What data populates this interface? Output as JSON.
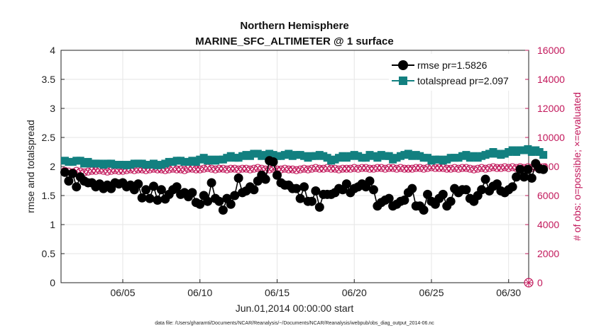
{
  "chart_data": {
    "type": "line",
    "title": "Northern Hemisphere",
    "subtitle": "MARINE_SFC_ALTIMETER @ 1 surface",
    "xlabel": "Jun.01,2014 00:00:00 start",
    "ylabel": "rmse and totalspread",
    "ylabel_right": "# of obs: o=possible; ×=evaluated",
    "footnote": "data file: /Users/gharamti/Documents/NCAR/Reanalysis/~/Documents/NCAR/Reanalysis/webpub/obs_diag_output_2014-06.nc",
    "xlim": [
      1.0,
      31.3
    ],
    "ylim": [
      0,
      4
    ],
    "ylim_right": [
      0,
      16000
    ],
    "x_ticks": [
      5,
      10,
      15,
      20,
      25,
      30
    ],
    "x_tick_labels": [
      "06/05",
      "06/10",
      "06/15",
      "06/20",
      "06/25",
      "06/30"
    ],
    "y_ticks": [
      0,
      0.5,
      1,
      1.5,
      2,
      2.5,
      3,
      3.5,
      4
    ],
    "y_tick_labels": [
      "0",
      "0.5",
      "1",
      "1.5",
      "2",
      "2.5",
      "3",
      "3.5",
      "4"
    ],
    "y_ticks_right": [
      0,
      2000,
      4000,
      6000,
      8000,
      10000,
      12000,
      14000,
      16000
    ],
    "y_tick_labels_right": [
      "0",
      "2000",
      "4000",
      "6000",
      "8000",
      "10000",
      "12000",
      "14000",
      "16000"
    ],
    "grid": true,
    "legend_position": "top-right",
    "series": [
      {
        "name": "rmse pr=1.5826",
        "color": "#000000",
        "marker": "circle",
        "axis": "left",
        "y": [
          1.9,
          1.75,
          1.88,
          1.65,
          1.82,
          1.75,
          1.72,
          1.72,
          1.65,
          1.7,
          1.62,
          1.68,
          1.62,
          1.72,
          1.7,
          1.72,
          1.65,
          1.68,
          1.6,
          1.7,
          1.46,
          1.6,
          1.45,
          1.66,
          1.42,
          1.6,
          1.44,
          1.52,
          1.6,
          1.65,
          1.52,
          1.55,
          1.48,
          1.55,
          1.38,
          1.35,
          1.5,
          1.4,
          1.72,
          1.45,
          1.4,
          1.25,
          1.45,
          1.35,
          1.5,
          1.8,
          1.55,
          1.58,
          1.65,
          1.6,
          1.75,
          1.85,
          1.78,
          2.1,
          2.08,
          1.85,
          1.72,
          1.68,
          1.68,
          1.62,
          1.62,
          1.45,
          1.65,
          1.4,
          1.4,
          1.58,
          1.3,
          1.52,
          1.52,
          1.52,
          1.55,
          1.62,
          1.6,
          1.7,
          1.55,
          1.62,
          1.65,
          1.7,
          1.65,
          1.75,
          1.6,
          1.32,
          1.38,
          1.42,
          1.45,
          1.32,
          1.35,
          1.4,
          1.42,
          1.55,
          1.62,
          1.32,
          1.32,
          1.25,
          1.52,
          1.4,
          1.35,
          1.45,
          1.52,
          1.32,
          1.4,
          1.62,
          1.55,
          1.6,
          1.6,
          1.45,
          1.4,
          1.5,
          1.6,
          1.78,
          1.58,
          1.66,
          1.7,
          1.58,
          1.55,
          1.6,
          1.65,
          1.82,
          1.95,
          1.82,
          1.95,
          1.8,
          2.05,
          1.96,
          1.95
        ]
      },
      {
        "name": "totalspread pr=2.097",
        "color": "#128080",
        "marker": "square",
        "axis": "left",
        "y": [
          2.1,
          2.08,
          2.08,
          2.1,
          2.1,
          2.05,
          2.08,
          2.05,
          2.05,
          2.05,
          2.03,
          2.05,
          2.05,
          2.03,
          2.03,
          2.03,
          2.02,
          2.03,
          2.05,
          2.05,
          2.05,
          2.03,
          2.03,
          2.05,
          2.02,
          2.03,
          2.05,
          2.08,
          2.08,
          2.1,
          2.1,
          2.08,
          2.08,
          2.1,
          2.08,
          2.12,
          2.15,
          2.1,
          2.12,
          2.1,
          2.12,
          2.12,
          2.15,
          2.18,
          2.15,
          2.15,
          2.18,
          2.2,
          2.18,
          2.22,
          2.22,
          2.18,
          2.2,
          2.22,
          2.2,
          2.18,
          2.18,
          2.2,
          2.22,
          2.18,
          2.2,
          2.2,
          2.18,
          2.15,
          2.18,
          2.18,
          2.2,
          2.18,
          2.15,
          2.1,
          2.12,
          2.15,
          2.18,
          2.15,
          2.18,
          2.2,
          2.18,
          2.15,
          2.15,
          2.2,
          2.18,
          2.15,
          2.2,
          2.18,
          2.18,
          2.12,
          2.15,
          2.18,
          2.2,
          2.22,
          2.18,
          2.2,
          2.18,
          2.15,
          2.15,
          2.1,
          2.12,
          2.12,
          2.1,
          2.12,
          2.15,
          2.15,
          2.15,
          2.18,
          2.2,
          2.15,
          2.18,
          2.15,
          2.18,
          2.2,
          2.22,
          2.25,
          2.22,
          2.2,
          2.22,
          2.25,
          2.28,
          2.25,
          2.28,
          2.28,
          2.3,
          2.25,
          2.28,
          2.25,
          2.2
        ]
      },
      {
        "name": "possible",
        "color": "#c2185b",
        "marker": "circle-open",
        "axis": "right",
        "y": [
          7700,
          7650,
          7600,
          7700,
          7650,
          7600,
          7650,
          7700,
          7700,
          7750,
          7700,
          7650,
          7700,
          7750,
          7700,
          7700,
          7750,
          7800,
          7750,
          7800,
          7800,
          7750,
          7800,
          7850,
          7800,
          7800,
          7750,
          7800,
          7850,
          7800,
          7800,
          7750,
          7850,
          7850,
          7800,
          7800,
          7850,
          7900,
          7850,
          7800,
          7850,
          7850,
          7800,
          7850,
          7850,
          7800,
          7850,
          7850,
          7800,
          7850,
          7900,
          7850,
          7800,
          7800,
          7850,
          7800,
          7800,
          7850,
          7800,
          7800,
          7750,
          7800,
          7850,
          7800,
          7850,
          7900,
          7850,
          7850,
          7900,
          7850,
          7850,
          7800,
          7850,
          7850,
          7850,
          7900,
          7850,
          7900,
          7900,
          7850,
          7850,
          7900,
          7900,
          7850,
          7900,
          7900,
          7850,
          7900,
          7850,
          7850,
          7850,
          7900,
          7900,
          7850,
          7900,
          7950,
          7900,
          7900,
          7900,
          7850,
          7850,
          7900,
          7850,
          7900,
          7900,
          7850,
          7800,
          7850,
          7900,
          7850,
          7900,
          7950,
          7900,
          7900,
          7950,
          7900,
          7950,
          7900,
          7950,
          7900,
          7950,
          7900,
          7950,
          7900,
          7950
        ]
      },
      {
        "name": "evaluated",
        "color": "#c2185b",
        "marker": "x",
        "axis": "right",
        "y": [
          7700,
          7650,
          7600,
          7700,
          7650,
          7600,
          7650,
          7700,
          7700,
          7750,
          7700,
          7650,
          7700,
          7750,
          7700,
          7700,
          7750,
          7800,
          7750,
          7800,
          7800,
          7750,
          7800,
          7850,
          7800,
          7800,
          7750,
          7800,
          7850,
          7800,
          7800,
          7750,
          7850,
          7850,
          7800,
          7800,
          7850,
          7900,
          7850,
          7800,
          7850,
          7850,
          7800,
          7850,
          7850,
          7800,
          7850,
          7850,
          7800,
          7850,
          7900,
          7850,
          7800,
          7800,
          7850,
          7800,
          7800,
          7850,
          7800,
          7800,
          7750,
          7800,
          7850,
          7800,
          7850,
          7900,
          7850,
          7850,
          7900,
          7850,
          7850,
          7800,
          7850,
          7850,
          7850,
          7900,
          7850,
          7900,
          7900,
          7850,
          7850,
          7900,
          7900,
          7850,
          7900,
          7900,
          7850,
          7900,
          7850,
          7850,
          7850,
          7900,
          7900,
          7850,
          7900,
          7950,
          7900,
          7900,
          7900,
          7850,
          7850,
          7900,
          7850,
          7900,
          7900,
          7850,
          7800,
          7850,
          7900,
          7850,
          7900,
          7950,
          7900,
          7900,
          7950,
          7900,
          7950,
          7900,
          7950,
          7900,
          7950,
          7900,
          7950,
          7900,
          7950
        ]
      }
    ],
    "x_start": 1.25,
    "x_step": 0.25,
    "extra_points": [
      {
        "x": 31.3,
        "y_right": 0,
        "marker": "circle-x"
      }
    ]
  }
}
